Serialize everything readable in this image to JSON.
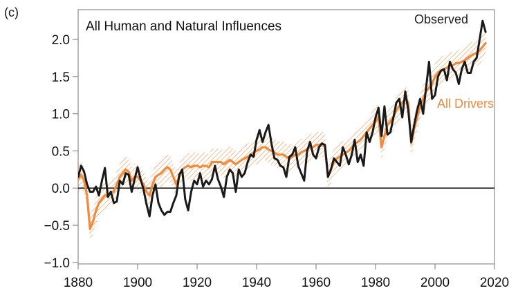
{
  "chart_data": {
    "type": "line",
    "panel_label": "(c)",
    "title": "All Human and Natural Influences",
    "xlim": [
      1880,
      2020
    ],
    "ylim": [
      -1.0,
      2.5
    ],
    "x_ticks": [
      1880,
      1900,
      1920,
      1940,
      1960,
      1980,
      2000,
      2020
    ],
    "x_tick_labels": [
      "1880",
      "1900",
      "1920",
      "1940",
      "1960",
      "1980",
      "2000",
      "2020"
    ],
    "y_ticks": [
      -1.0,
      -0.5,
      0.0,
      0.5,
      1.0,
      1.5,
      2.0
    ],
    "y_tick_labels": [
      "−1.0",
      "−0.5",
      "0.0",
      "0.5",
      "1.0",
      "1.5",
      "2.0"
    ],
    "zero_line": 0.0,
    "colors": {
      "observed": "#1a1a1a",
      "all_drivers": "#f08a3c",
      "band": "#f08a3c",
      "axes": "#8c8c8c"
    },
    "series": [
      {
        "name": "Observed",
        "x": [
          1880,
          1881,
          1882,
          1883,
          1884,
          1885,
          1886,
          1887,
          1888,
          1889,
          1890,
          1891,
          1892,
          1893,
          1894,
          1895,
          1896,
          1897,
          1898,
          1899,
          1900,
          1901,
          1902,
          1903,
          1904,
          1905,
          1906,
          1907,
          1908,
          1909,
          1910,
          1911,
          1912,
          1913,
          1914,
          1915,
          1916,
          1917,
          1918,
          1919,
          1920,
          1921,
          1922,
          1923,
          1924,
          1925,
          1926,
          1927,
          1928,
          1929,
          1930,
          1931,
          1932,
          1933,
          1934,
          1935,
          1936,
          1937,
          1938,
          1939,
          1940,
          1941,
          1942,
          1943,
          1944,
          1945,
          1946,
          1947,
          1948,
          1949,
          1950,
          1951,
          1952,
          1953,
          1954,
          1955,
          1956,
          1957,
          1958,
          1959,
          1960,
          1961,
          1962,
          1963,
          1964,
          1965,
          1966,
          1967,
          1968,
          1969,
          1970,
          1971,
          1972,
          1973,
          1974,
          1975,
          1976,
          1977,
          1978,
          1979,
          1980,
          1981,
          1982,
          1983,
          1984,
          1985,
          1986,
          1987,
          1988,
          1989,
          1990,
          1991,
          1992,
          1993,
          1994,
          1995,
          1996,
          1997,
          1998,
          1999,
          2000,
          2001,
          2002,
          2003,
          2004,
          2005,
          2006,
          2007,
          2008,
          2009,
          2010,
          2011,
          2012,
          2013,
          2014,
          2015,
          2016,
          2017
        ],
        "values": [
          0.15,
          0.3,
          0.22,
          0.05,
          -0.05,
          -0.05,
          0.02,
          -0.1,
          0.1,
          0.27,
          -0.12,
          -0.05,
          -0.2,
          -0.18,
          0.1,
          0.05,
          0.2,
          0.18,
          -0.05,
          0.12,
          0.28,
          0.12,
          -0.02,
          -0.22,
          -0.38,
          -0.1,
          0.05,
          -0.2,
          -0.3,
          -0.36,
          -0.32,
          -0.32,
          -0.2,
          -0.1,
          0.18,
          0.25,
          -0.15,
          -0.3,
          -0.05,
          0.1,
          0.05,
          0.2,
          0.02,
          0.1,
          0.05,
          0.12,
          0.3,
          0.12,
          0.02,
          -0.12,
          0.15,
          0.25,
          0.2,
          -0.05,
          0.25,
          0.15,
          0.2,
          0.35,
          0.45,
          0.42,
          0.65,
          0.78,
          0.62,
          0.75,
          0.85,
          0.6,
          0.4,
          0.38,
          0.3,
          0.28,
          0.15,
          0.42,
          0.45,
          0.55,
          0.3,
          0.2,
          0.1,
          0.5,
          0.62,
          0.45,
          0.4,
          0.55,
          0.6,
          0.58,
          0.15,
          0.25,
          0.4,
          0.35,
          0.3,
          0.55,
          0.45,
          0.32,
          0.45,
          0.65,
          0.35,
          0.45,
          0.3,
          0.75,
          0.62,
          0.75,
          0.95,
          1.08,
          0.7,
          1.1,
          0.72,
          0.75,
          0.95,
          1.15,
          1.2,
          0.95,
          1.3,
          1.05,
          0.62,
          0.85,
          1.05,
          1.2,
          1.0,
          1.35,
          1.7,
          1.2,
          1.25,
          1.5,
          1.58,
          1.6,
          1.45,
          1.7,
          1.6,
          1.55,
          1.4,
          1.6,
          1.7,
          1.55,
          1.55,
          1.7,
          1.75,
          2.0,
          2.25,
          2.1
        ]
      },
      {
        "name": "All Drivers",
        "x": [
          1880,
          1881,
          1882,
          1883,
          1884,
          1885,
          1886,
          1887,
          1888,
          1889,
          1890,
          1891,
          1892,
          1893,
          1894,
          1895,
          1896,
          1897,
          1898,
          1899,
          1900,
          1901,
          1902,
          1903,
          1904,
          1905,
          1906,
          1907,
          1908,
          1909,
          1910,
          1911,
          1912,
          1913,
          1914,
          1915,
          1916,
          1917,
          1918,
          1919,
          1920,
          1921,
          1922,
          1923,
          1924,
          1925,
          1926,
          1927,
          1928,
          1929,
          1930,
          1931,
          1932,
          1933,
          1934,
          1935,
          1936,
          1937,
          1938,
          1939,
          1940,
          1941,
          1942,
          1943,
          1944,
          1945,
          1946,
          1947,
          1948,
          1949,
          1950,
          1951,
          1952,
          1953,
          1954,
          1955,
          1956,
          1957,
          1958,
          1959,
          1960,
          1961,
          1962,
          1963,
          1964,
          1965,
          1966,
          1967,
          1968,
          1969,
          1970,
          1971,
          1972,
          1973,
          1974,
          1975,
          1976,
          1977,
          1978,
          1979,
          1980,
          1981,
          1982,
          1983,
          1984,
          1985,
          1986,
          1987,
          1988,
          1989,
          1990,
          1991,
          1992,
          1993,
          1994,
          1995,
          1996,
          1997,
          1998,
          1999,
          2000,
          2001,
          2002,
          2003,
          2004,
          2005,
          2006,
          2007,
          2008,
          2009,
          2010,
          2011,
          2012,
          2013,
          2014,
          2015,
          2016,
          2017
        ],
        "values": [
          0.12,
          0.18,
          0.1,
          -0.1,
          -0.55,
          -0.45,
          -0.3,
          -0.2,
          -0.15,
          -0.1,
          -0.1,
          -0.05,
          -0.05,
          0.05,
          0.15,
          0.2,
          0.25,
          0.22,
          0.1,
          0.15,
          0.15,
          0.1,
          0.05,
          -0.05,
          -0.1,
          0.05,
          0.15,
          0.18,
          0.2,
          0.25,
          0.28,
          0.25,
          0.15,
          0.05,
          0.15,
          0.25,
          0.28,
          0.3,
          0.28,
          0.3,
          0.3,
          0.28,
          0.3,
          0.3,
          0.28,
          0.35,
          0.35,
          0.35,
          0.35,
          0.32,
          0.35,
          0.38,
          0.35,
          0.32,
          0.35,
          0.38,
          0.4,
          0.42,
          0.45,
          0.48,
          0.5,
          0.52,
          0.55,
          0.55,
          0.52,
          0.5,
          0.48,
          0.45,
          0.45,
          0.45,
          0.42,
          0.4,
          0.42,
          0.45,
          0.45,
          0.48,
          0.5,
          0.52,
          0.55,
          0.55,
          0.58,
          0.58,
          0.6,
          0.55,
          0.15,
          0.25,
          0.35,
          0.4,
          0.42,
          0.45,
          0.48,
          0.5,
          0.55,
          0.6,
          0.62,
          0.65,
          0.7,
          0.75,
          0.8,
          0.85,
          0.9,
          0.95,
          0.55,
          0.7,
          0.85,
          0.9,
          0.95,
          1.05,
          1.1,
          1.15,
          1.2,
          1.15,
          0.6,
          0.8,
          0.95,
          1.1,
          1.2,
          1.3,
          1.35,
          1.4,
          1.5,
          1.55,
          1.58,
          1.6,
          1.62,
          1.65,
          1.65,
          1.68,
          1.68,
          1.7,
          1.72,
          1.75,
          1.78,
          1.8,
          1.82,
          1.85,
          1.9,
          1.95
        ]
      }
    ],
    "uncertainty_band": {
      "series": "All Drivers",
      "half_width": 0.18
    },
    "legend": {
      "observed_label": "Observed",
      "drivers_label": "All Drivers"
    }
  }
}
